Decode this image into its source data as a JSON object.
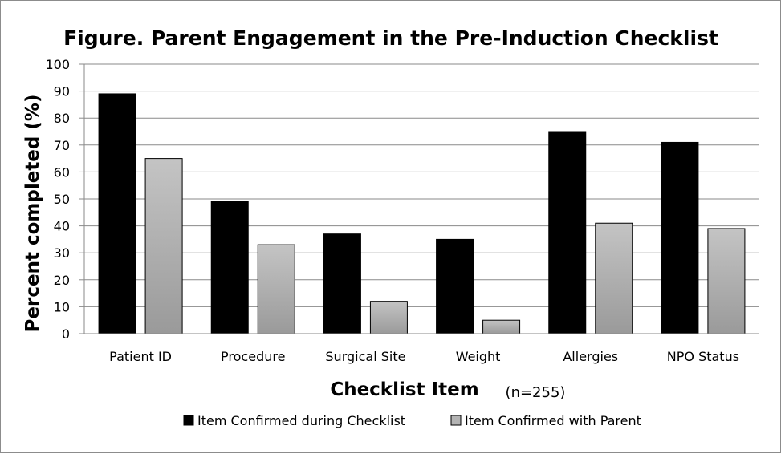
{
  "chart_data": {
    "type": "bar",
    "title": "Figure. Parent Engagement in the Pre-Induction Checklist",
    "xlabel": "Checklist Item",
    "ylabel": "Percent completed (%)",
    "note": "(n=255)",
    "categories": [
      "Patient ID",
      "Procedure",
      "Surgical Site",
      "Weight",
      "Allergies",
      "NPO Status"
    ],
    "series": [
      {
        "name": "Item Confirmed during Checklist",
        "values": [
          89,
          49,
          37,
          35,
          75,
          71
        ],
        "color": "#000000"
      },
      {
        "name": "Item Confirmed with Parent",
        "values": [
          65,
          33,
          12,
          5,
          41,
          39
        ],
        "color": "#b3b3b3"
      }
    ],
    "ylim": [
      0,
      100
    ],
    "yticks": [
      0,
      10,
      20,
      30,
      40,
      50,
      60,
      70,
      80,
      90,
      100
    ],
    "grid": true,
    "legend_position": "bottom"
  }
}
